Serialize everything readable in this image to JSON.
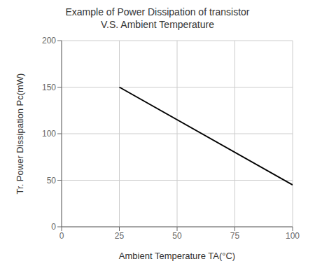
{
  "chart_data": {
    "type": "line",
    "title": "Example of Power Dissipation of transistor\nV.S. Ambient Temperature",
    "x_label": "Ambient Temperature TA(°C)",
    "y_label": "Tr. Power Dissipation Pc(mW)",
    "x": [
      25,
      100
    ],
    "values": [
      150,
      45
    ],
    "color": "#000000",
    "xlim": [
      0,
      100
    ],
    "ylim": [
      0,
      200
    ],
    "xticks": [
      0,
      25,
      50,
      75,
      100
    ],
    "yticks": [
      0,
      50,
      100,
      150,
      200
    ],
    "grid": true
  }
}
